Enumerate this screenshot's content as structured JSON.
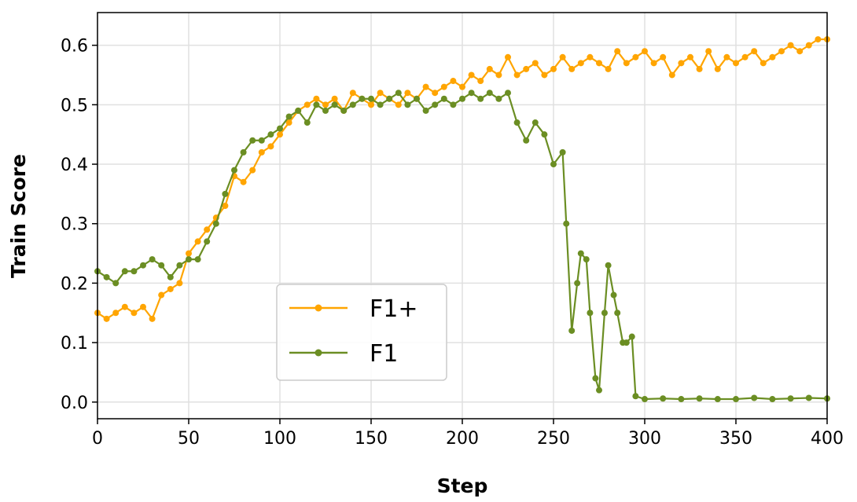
{
  "chart_data": {
    "type": "line",
    "title": "",
    "xlabel": "Step",
    "ylabel": "Train Score",
    "xlim": [
      0,
      400
    ],
    "ylim": [
      -0.028,
      0.655
    ],
    "xticks": [
      0,
      50,
      100,
      150,
      200,
      250,
      300,
      350,
      400
    ],
    "xtick_labels": [
      "0",
      "50",
      "100",
      "150",
      "200",
      "250",
      "300",
      "350",
      "400"
    ],
    "yticks": [
      0.0,
      0.1,
      0.2,
      0.3,
      0.4,
      0.5,
      0.6
    ],
    "ytick_labels": [
      "0.0",
      "0.1",
      "0.2",
      "0.3",
      "0.4",
      "0.5",
      "0.6"
    ],
    "grid": true,
    "legend_position": "lower-left-center",
    "series": [
      {
        "name": "F1+",
        "color": "#FFA500",
        "x": [
          0,
          5,
          10,
          15,
          20,
          25,
          30,
          35,
          40,
          45,
          50,
          55,
          60,
          65,
          70,
          75,
          80,
          85,
          90,
          95,
          100,
          105,
          110,
          115,
          120,
          125,
          130,
          135,
          140,
          145,
          150,
          155,
          160,
          165,
          170,
          175,
          180,
          185,
          190,
          195,
          200,
          205,
          210,
          215,
          220,
          225,
          230,
          235,
          240,
          245,
          250,
          255,
          260,
          265,
          270,
          275,
          280,
          285,
          290,
          295,
          300,
          305,
          310,
          315,
          320,
          325,
          330,
          335,
          340,
          345,
          350,
          355,
          360,
          365,
          370,
          375,
          380,
          385,
          390,
          395,
          400
        ],
        "values": [
          0.15,
          0.14,
          0.15,
          0.16,
          0.15,
          0.16,
          0.14,
          0.18,
          0.19,
          0.2,
          0.25,
          0.27,
          0.29,
          0.31,
          0.33,
          0.38,
          0.37,
          0.39,
          0.42,
          0.43,
          0.45,
          0.47,
          0.49,
          0.5,
          0.51,
          0.5,
          0.51,
          0.49,
          0.52,
          0.51,
          0.5,
          0.52,
          0.51,
          0.5,
          0.52,
          0.51,
          0.53,
          0.52,
          0.53,
          0.54,
          0.53,
          0.55,
          0.54,
          0.56,
          0.55,
          0.58,
          0.55,
          0.56,
          0.57,
          0.55,
          0.56,
          0.58,
          0.56,
          0.57,
          0.58,
          0.57,
          0.56,
          0.59,
          0.57,
          0.58,
          0.59,
          0.57,
          0.58,
          0.55,
          0.57,
          0.58,
          0.56,
          0.59,
          0.56,
          0.58,
          0.57,
          0.58,
          0.59,
          0.57,
          0.58,
          0.59,
          0.6,
          0.59,
          0.6,
          0.61,
          0.61
        ]
      },
      {
        "name": "F1",
        "color": "#6B8E23",
        "x": [
          0,
          5,
          10,
          15,
          20,
          25,
          30,
          35,
          40,
          45,
          50,
          55,
          60,
          65,
          70,
          75,
          80,
          85,
          90,
          95,
          100,
          105,
          110,
          115,
          120,
          125,
          130,
          135,
          140,
          145,
          150,
          155,
          160,
          165,
          170,
          175,
          180,
          185,
          190,
          195,
          200,
          205,
          210,
          215,
          220,
          225,
          230,
          235,
          240,
          245,
          250,
          255,
          257,
          260,
          263,
          265,
          268,
          270,
          273,
          275,
          278,
          280,
          283,
          285,
          288,
          290,
          293,
          295,
          300,
          310,
          320,
          330,
          340,
          350,
          360,
          370,
          380,
          390,
          400
        ],
        "values": [
          0.22,
          0.21,
          0.2,
          0.22,
          0.22,
          0.23,
          0.24,
          0.23,
          0.21,
          0.23,
          0.24,
          0.24,
          0.27,
          0.3,
          0.35,
          0.39,
          0.42,
          0.44,
          0.44,
          0.45,
          0.46,
          0.48,
          0.49,
          0.47,
          0.5,
          0.49,
          0.5,
          0.49,
          0.5,
          0.51,
          0.51,
          0.5,
          0.51,
          0.52,
          0.5,
          0.51,
          0.49,
          0.5,
          0.51,
          0.5,
          0.51,
          0.52,
          0.51,
          0.52,
          0.51,
          0.52,
          0.47,
          0.44,
          0.47,
          0.45,
          0.4,
          0.42,
          0.3,
          0.12,
          0.2,
          0.25,
          0.24,
          0.15,
          0.04,
          0.02,
          0.15,
          0.23,
          0.18,
          0.15,
          0.1,
          0.1,
          0.11,
          0.01,
          0.005,
          0.006,
          0.005,
          0.006,
          0.005,
          0.005,
          0.007,
          0.005,
          0.006,
          0.007,
          0.006
        ]
      }
    ]
  }
}
